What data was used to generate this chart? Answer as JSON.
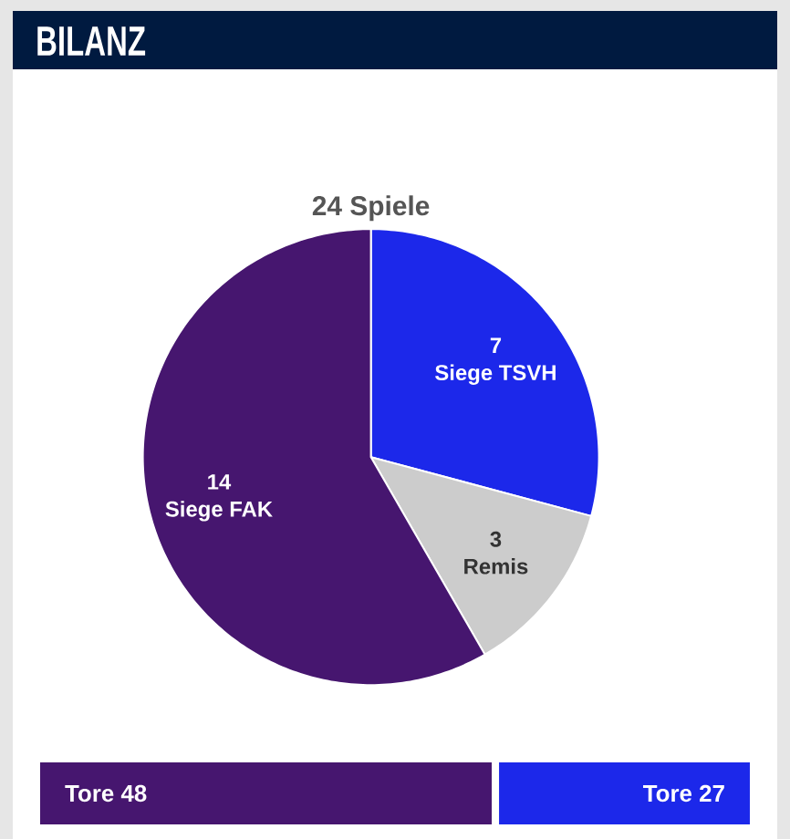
{
  "chart_data": [
    {
      "type": "pie",
      "title": "BILANZ",
      "subtitle": "24 Spiele",
      "categories": [
        "Siege TSVH",
        "Remis",
        "Siege FAK"
      ],
      "values": [
        7,
        3,
        14
      ],
      "colors": [
        "#1c28ea",
        "#cccccc",
        "#46166f"
      ],
      "data_labels": true
    },
    {
      "type": "bar",
      "orientation": "horizontal",
      "stacked": true,
      "categories": [
        null
      ],
      "series": [
        {
          "color": "#46166f",
          "values": [
            48
          ],
          "value_labels": [
            "Tore 48"
          ]
        },
        {
          "color": "#1c28ea",
          "values": [
            27
          ],
          "value_labels": [
            "Tore 27"
          ]
        }
      ]
    }
  ]
}
